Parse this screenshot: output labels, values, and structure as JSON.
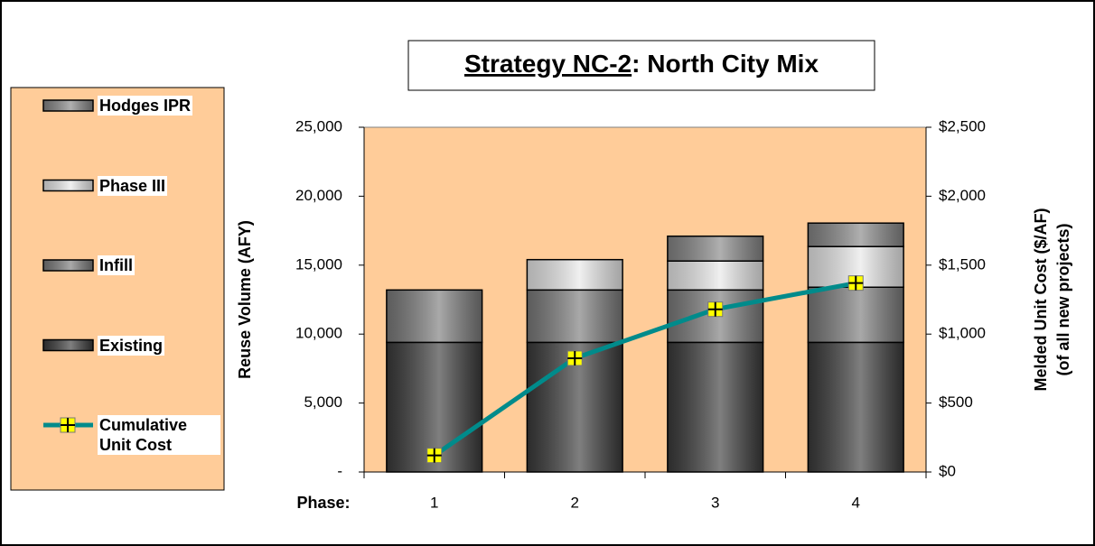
{
  "chart_data": {
    "type": "bar",
    "title": "Strategy NC-2: North City Mix",
    "ylabel": "Reuse Volume (AFY)",
    "y2label": [
      "Melded Unit Cost ($/AF)",
      "(of all new projects)"
    ],
    "xlabel": "Phase:",
    "categories": [
      "1",
      "2",
      "3",
      "4"
    ],
    "series": [
      {
        "name": "Existing",
        "color": "#3a3a3a",
        "values": [
          9400,
          9400,
          9400,
          9400
        ]
      },
      {
        "name": "Infill",
        "color": "#7a7a7a",
        "values": [
          3800,
          3800,
          3800,
          4000
        ]
      },
      {
        "name": "Phase III",
        "color": "#e8e8e8",
        "values": [
          null,
          2200,
          2100,
          2950
        ]
      },
      {
        "name": "Hodges IPR",
        "color": "#858585",
        "values": [
          null,
          null,
          1800,
          1700
        ]
      },
      {
        "name": "Cumulative Unit Cost",
        "type": "line",
        "axis": "y2",
        "color": "#008b8b",
        "marker_color": "#ffff00",
        "values": [
          120,
          825,
          1180,
          1370
        ]
      }
    ],
    "ylim": [
      0,
      25000
    ],
    "yticks": [
      {
        "value": 0,
        "label": "-"
      },
      {
        "value": 5000,
        "label": "5,000"
      },
      {
        "value": 10000,
        "label": "10,000"
      },
      {
        "value": 15000,
        "label": "15,000"
      },
      {
        "value": 20000,
        "label": "20,000"
      },
      {
        "value": 25000,
        "label": "25,000"
      }
    ],
    "y2lim": [
      0,
      2500
    ],
    "y2ticks": [
      {
        "value": 0,
        "label": "$0"
      },
      {
        "value": 500,
        "label": "$500"
      },
      {
        "value": 1000,
        "label": "$1,000"
      },
      {
        "value": 1500,
        "label": "$1,500"
      },
      {
        "value": 2000,
        "label": "$2,000"
      },
      {
        "value": 2500,
        "label": "$2,500"
      }
    ],
    "plot_background": "#ffcc99",
    "legend": "left"
  }
}
